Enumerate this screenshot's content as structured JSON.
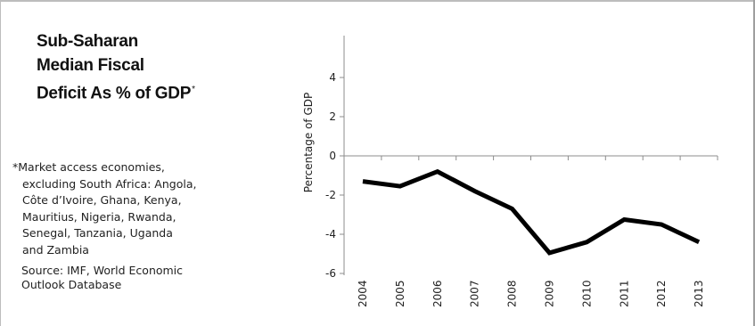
{
  "title": {
    "lines": [
      "Sub-Saharan",
      "Median Fiscal",
      "Deficit As % of GDP"
    ],
    "mark": "*"
  },
  "footnote": {
    "lines": [
      "*Market access economies,",
      "excluding South Africa: Angola,",
      "Côte d’Ivoire, Ghana, Kenya,",
      "Mauritius, Nigeria, Rwanda,",
      "Senegal, Tanzania, Uganda",
      "and Zambia"
    ]
  },
  "source": {
    "lines": [
      "Source: IMF, World Economic",
      "Outlook Database"
    ]
  },
  "chart_data": {
    "type": "line",
    "title": "",
    "xlabel": "",
    "ylabel": "Percentage of GDP",
    "categories": [
      "2004",
      "2005",
      "2006",
      "2007",
      "2008",
      "2009",
      "2010",
      "2011",
      "2012",
      "2013"
    ],
    "series": [
      {
        "name": "",
        "values": [
          -1.3,
          -1.55,
          -0.8,
          -1.8,
          -2.7,
          -4.95,
          -4.4,
          -3.25,
          -3.5,
          -4.4
        ]
      }
    ],
    "ylim": [
      -6,
      4
    ],
    "yticks": [
      -6,
      -4,
      -2,
      0,
      2,
      4
    ],
    "grid": false,
    "line_color": "#000000"
  }
}
